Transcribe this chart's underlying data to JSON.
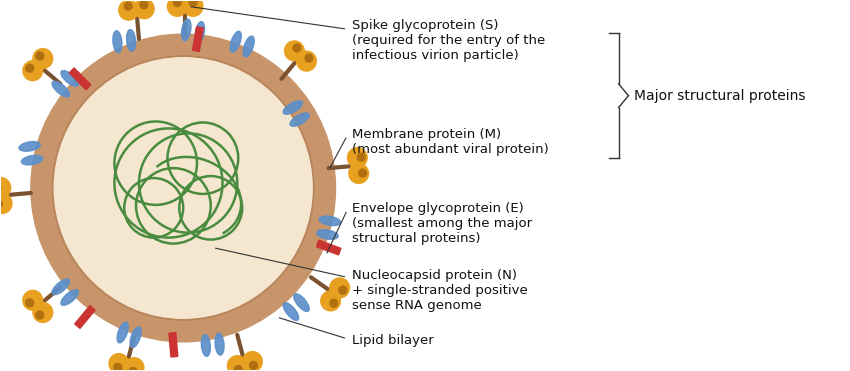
{
  "bg_color": "#ffffff",
  "outer_shell_color": "#c8956b",
  "outer_shell_color2": "#b8845a",
  "inner_fill_color": "#f5e6d0",
  "rna_color": "#4a8c3f",
  "rna_linewidth": 1.8,
  "spike_head_color": "#e8a020",
  "spike_stem_color": "#7B5230",
  "membrane_color": "#5b8fc9",
  "envelope_color": "#cc3333",
  "line_color": "#333333",
  "text_color": "#111111",
  "annotations": [
    {
      "text": "Spike glycoprotein (S)\n(required for the entry of the\ninfectious virion particle)",
      "ha": "left",
      "va": "top",
      "fontsize": 9.5
    },
    {
      "text": "Membrane protein (M)\n(most abundant viral protein)",
      "ha": "left",
      "va": "top",
      "fontsize": 9.5
    },
    {
      "text": "Envelope glycoprotein (E)\n(smallest among the major\nstructural proteins)",
      "ha": "left",
      "va": "top",
      "fontsize": 9.5
    },
    {
      "text": "Nucleocapsid protein (N)\n+ single-stranded positive\nsense RNA genome",
      "ha": "left",
      "va": "top",
      "fontsize": 9.5
    },
    {
      "text": "Lipid bilayer",
      "ha": "left",
      "va": "top",
      "fontsize": 9.5
    }
  ]
}
